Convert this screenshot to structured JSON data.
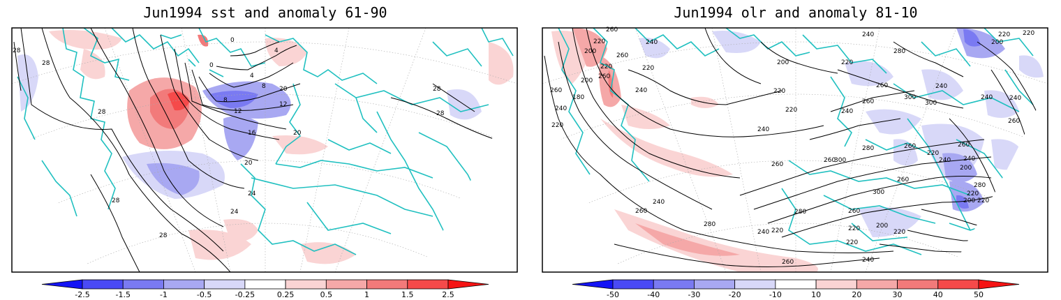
{
  "left_panel": {
    "title": "Jun1994 sst and anomaly 61-90",
    "contour_labels": [
      "28",
      "28",
      "28",
      "28",
      "28",
      "28",
      "28",
      "24",
      "24",
      "20",
      "20",
      "20",
      "16",
      "12",
      "12",
      "8",
      "8",
      "4",
      "4",
      "0",
      "0"
    ],
    "colorbar": {
      "ticks": [
        "-2.5",
        "-1.5",
        "-1",
        "-0.5",
        "-0.25",
        "0.25",
        "0.5",
        "1",
        "1.5",
        "2.5"
      ],
      "colors": [
        "#1414f5",
        "#4a4af5",
        "#7a7af2",
        "#a8a8f2",
        "#d8d8f8",
        "#ffffff",
        "#fad4d4",
        "#f5a8a8",
        "#f27a7a",
        "#f54a4a",
        "#f51414"
      ]
    }
  },
  "right_panel": {
    "title": "Jun1994 olr and anomaly 81-10",
    "contour_labels": [
      "260",
      "220",
      "260",
      "240",
      "200",
      "220",
      "260",
      "200",
      "220",
      "260",
      "240",
      "180",
      "240",
      "220",
      "200",
      "220",
      "280",
      "240",
      "220",
      "200",
      "220",
      "240",
      "300",
      "220",
      "260",
      "220",
      "240",
      "240",
      "300",
      "260",
      "240",
      "280",
      "260",
      "260",
      "300",
      "260",
      "240",
      "220",
      "300",
      "260",
      "280",
      "240",
      "260",
      "260",
      "240",
      "280",
      "200",
      "220",
      "220",
      "220",
      "220",
      "200",
      "260",
      "240",
      "260",
      "240",
      "200",
      "220",
      "260",
      "240",
      "280",
      "220"
    ],
    "colorbar": {
      "ticks": [
        "-50",
        "-40",
        "-30",
        "-20",
        "-10",
        "10",
        "20",
        "30",
        "40",
        "50"
      ],
      "colors": [
        "#1414f5",
        "#4a4af5",
        "#7a7af2",
        "#a8a8f2",
        "#d8d8f8",
        "#ffffff",
        "#fad4d4",
        "#f5a8a8",
        "#f27a7a",
        "#f54a4a",
        "#f51414"
      ]
    }
  },
  "colors": {
    "coast": "#20c0c0",
    "warm": "#f27a7a",
    "cool": "#7a7af2",
    "frame": "#000000"
  }
}
